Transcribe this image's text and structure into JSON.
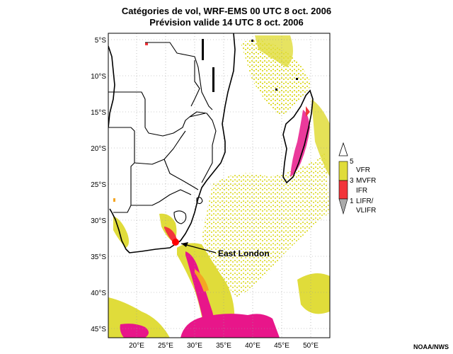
{
  "title": {
    "line1": "Catégories de vol, WRF-EMS 00 UTC 8 oct. 2006",
    "line2": "Prévision valide 14 UTC 8 oct. 2006"
  },
  "latitude_labels": [
    "5°S",
    "10°S",
    "15°S",
    "20°S",
    "25°S",
    "30°S",
    "35°S",
    "40°S",
    "45°S"
  ],
  "longitude_labels": [
    "20°E",
    "25°E",
    "30°E",
    "35°E",
    "40°E",
    "45°E",
    "50°E"
  ],
  "callout": {
    "label": "East London"
  },
  "legend": {
    "items": [
      {
        "number": "5",
        "label": ""
      },
      {
        "number": "",
        "label": "VFR"
      },
      {
        "number": "3",
        "label": "MVFR"
      },
      {
        "number": "",
        "label": "IFR"
      },
      {
        "number": "1",
        "label": "LIFR/"
      },
      {
        "number": "",
        "label": "VLIFR"
      }
    ],
    "colors": {
      "vfr": "#e0dc3a",
      "mvfr": "#f2353a",
      "ifr_lifr": "#e8168a",
      "low": "#aaaaaa",
      "mvfr_orange": "#f5a623"
    }
  },
  "credit": "NOAA/NWS"
}
